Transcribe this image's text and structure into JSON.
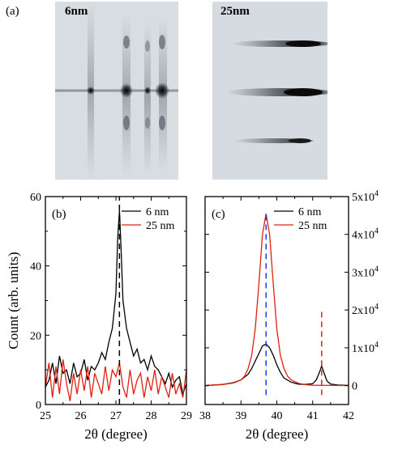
{
  "figure": {
    "panel_a_label": "(a)",
    "image_left_label": "6nm",
    "image_right_label": "25nm"
  },
  "colors": {
    "black_series": "#000000",
    "red_series": "#e02010",
    "blue_dash": "#1a3cff",
    "red_dash": "#e02010",
    "image_bg": "#d9dfe2"
  },
  "chart_data": [
    {
      "type": "line",
      "panel_label": "(b)",
      "xlabel": "2θ (degree)",
      "ylabel": "Count (arb. units)",
      "xlim": [
        25,
        29
      ],
      "ylim": [
        0,
        60
      ],
      "xticks": [
        25,
        26,
        27,
        28,
        29
      ],
      "yticks": [
        0,
        20,
        40,
        60
      ],
      "legend_position": "top-right",
      "series": [
        {
          "name": "6 nm",
          "color": "#000000",
          "x": [
            25.0,
            25.1,
            25.2,
            25.3,
            25.4,
            25.5,
            25.6,
            25.7,
            25.8,
            25.9,
            26.0,
            26.1,
            26.2,
            26.3,
            26.4,
            26.5,
            26.6,
            26.7,
            26.8,
            26.9,
            27.0,
            27.05,
            27.1,
            27.15,
            27.2,
            27.3,
            27.4,
            27.5,
            27.6,
            27.7,
            27.8,
            27.9,
            28.0,
            28.1,
            28.2,
            28.3,
            28.4,
            28.5,
            28.6,
            28.7,
            28.8,
            28.9,
            29.0
          ],
          "y": [
            5,
            7,
            12,
            6,
            14,
            9,
            10,
            6,
            12,
            8,
            9,
            13,
            7,
            11,
            10,
            12,
            15,
            13,
            18,
            22,
            32,
            48,
            56,
            44,
            30,
            22,
            18,
            14,
            16,
            12,
            13,
            10,
            14,
            11,
            10,
            8,
            6,
            9,
            5,
            7,
            8,
            3,
            6
          ]
        },
        {
          "name": "25 nm",
          "color": "#e02010",
          "x": [
            25.0,
            25.1,
            25.2,
            25.3,
            25.4,
            25.5,
            25.6,
            25.7,
            25.8,
            25.9,
            26.0,
            26.1,
            26.2,
            26.3,
            26.4,
            26.5,
            26.6,
            26.7,
            26.8,
            26.9,
            27.0,
            27.1,
            27.2,
            27.3,
            27.4,
            27.5,
            27.6,
            27.7,
            27.8,
            27.9,
            28.0,
            28.1,
            28.2,
            28.3,
            28.4,
            28.5,
            28.6,
            28.7,
            28.8,
            28.9,
            29.0
          ],
          "y": [
            5,
            12,
            2,
            11,
            3,
            13,
            6,
            1,
            9,
            3,
            10,
            4,
            11,
            2,
            9,
            6,
            3,
            11,
            4,
            10,
            8,
            12,
            5,
            2,
            10,
            3,
            7,
            9,
            2,
            8,
            4,
            10,
            3,
            8,
            5,
            2,
            9,
            3,
            6,
            2,
            10
          ]
        }
      ],
      "vlines": [
        {
          "x": 27.1,
          "color": "#000000",
          "style": "dashed"
        }
      ]
    },
    {
      "type": "line",
      "panel_label": "(c)",
      "xlabel": "2θ (degree)",
      "xlim": [
        38,
        42
      ],
      "ylim": [
        -5000,
        50000
      ],
      "xticks": [
        38,
        39,
        40,
        41,
        42
      ],
      "yticks_right": [
        0,
        10000,
        20000,
        30000,
        40000,
        50000
      ],
      "yticks_right_labels": [
        {
          "base": "0",
          "exp": ""
        },
        {
          "base": "1x10",
          "exp": "4"
        },
        {
          "base": "2x10",
          "exp": "4"
        },
        {
          "base": "3x10",
          "exp": "4"
        },
        {
          "base": "4x10",
          "exp": "4"
        },
        {
          "base": "5x10",
          "exp": "4"
        }
      ],
      "legend_position": "top-right",
      "series": [
        {
          "name": "6 nm",
          "color": "#000000",
          "x": [
            38.0,
            38.5,
            38.8,
            39.0,
            39.2,
            39.3,
            39.4,
            39.5,
            39.6,
            39.7,
            39.8,
            39.9,
            40.0,
            40.1,
            40.2,
            40.4,
            40.6,
            40.8,
            41.0,
            41.1,
            41.2,
            41.25,
            41.3,
            41.4,
            41.5,
            41.7,
            42.0
          ],
          "y": [
            0,
            300,
            800,
            1500,
            3000,
            4500,
            6500,
            8500,
            10500,
            11000,
            10000,
            8000,
            5500,
            3500,
            2000,
            900,
            400,
            300,
            500,
            1500,
            3800,
            5200,
            3800,
            1200,
            400,
            150,
            50
          ]
        },
        {
          "name": "25 nm",
          "color": "#e02010",
          "x": [
            38.0,
            38.5,
            38.8,
            39.0,
            39.1,
            39.2,
            39.3,
            39.4,
            39.5,
            39.6,
            39.7,
            39.8,
            39.9,
            40.0,
            40.1,
            40.2,
            40.3,
            40.4,
            40.6,
            40.8,
            41.0,
            41.5,
            42.0
          ],
          "y": [
            0,
            300,
            700,
            1500,
            2500,
            4500,
            8000,
            15000,
            27000,
            40000,
            45500,
            40000,
            27000,
            15000,
            8000,
            4500,
            2500,
            1500,
            600,
            250,
            100,
            40,
            10
          ]
        }
      ],
      "vlines": [
        {
          "x": 39.7,
          "color": "#1a3cff",
          "style": "dashed",
          "from": -2500,
          "to": 46000
        },
        {
          "x": 41.25,
          "color": "#e02010",
          "style": "dashed",
          "from": -2500,
          "to": 19500
        }
      ]
    }
  ]
}
